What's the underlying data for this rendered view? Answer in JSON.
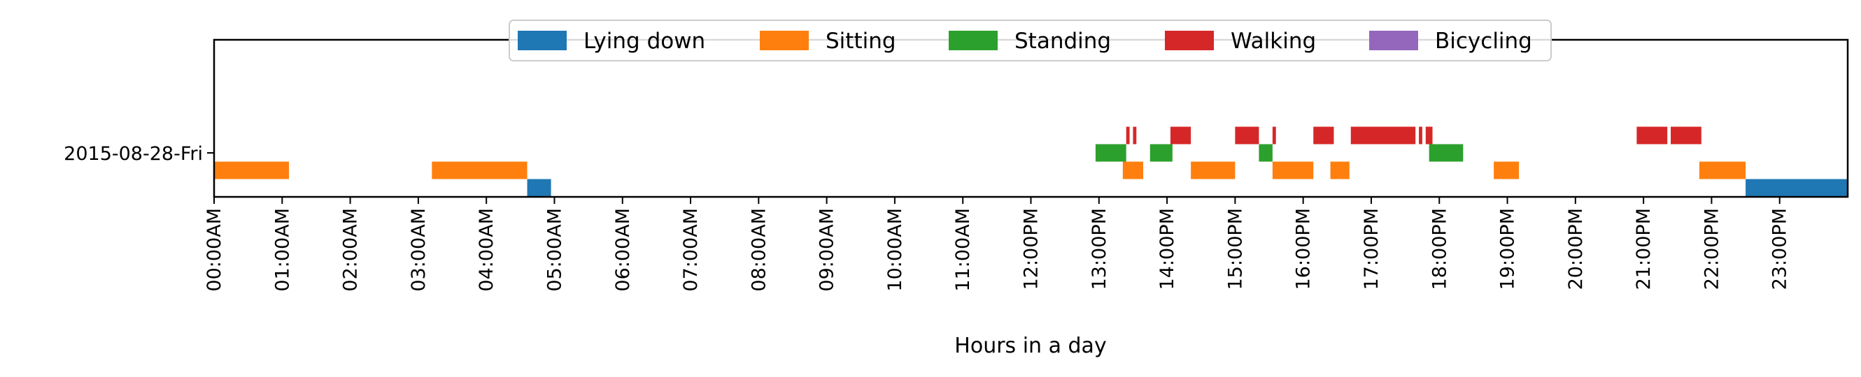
{
  "chart_data": {
    "type": "timeline",
    "xlabel": "Hours in a day",
    "xlim": [
      0,
      24
    ],
    "x_ticks": [
      {
        "value": 0,
        "label": "00:00AM"
      },
      {
        "value": 1,
        "label": "01:00AM"
      },
      {
        "value": 2,
        "label": "02:00AM"
      },
      {
        "value": 3,
        "label": "03:00AM"
      },
      {
        "value": 4,
        "label": "04:00AM"
      },
      {
        "value": 5,
        "label": "05:00AM"
      },
      {
        "value": 6,
        "label": "06:00AM"
      },
      {
        "value": 7,
        "label": "07:00AM"
      },
      {
        "value": 8,
        "label": "08:00AM"
      },
      {
        "value": 9,
        "label": "09:00AM"
      },
      {
        "value": 10,
        "label": "10:00AM"
      },
      {
        "value": 11,
        "label": "11:00AM"
      },
      {
        "value": 12,
        "label": "12:00PM"
      },
      {
        "value": 13,
        "label": "13:00PM"
      },
      {
        "value": 14,
        "label": "14:00PM"
      },
      {
        "value": 15,
        "label": "15:00PM"
      },
      {
        "value": 16,
        "label": "16:00PM"
      },
      {
        "value": 17,
        "label": "17:00PM"
      },
      {
        "value": 18,
        "label": "18:00PM"
      },
      {
        "value": 19,
        "label": "19:00PM"
      },
      {
        "value": 20,
        "label": "20:00PM"
      },
      {
        "value": 21,
        "label": "21:00PM"
      },
      {
        "value": 22,
        "label": "22:00PM"
      },
      {
        "value": 23,
        "label": "23:00PM"
      }
    ],
    "rows": [
      {
        "label": "2015-08-28-Fri"
      }
    ],
    "legend_position": "top-center",
    "grid": false,
    "series": [
      {
        "name": "Lying down",
        "color": "#1f77b4",
        "level": 2,
        "intervals": [
          [
            4.6,
            4.95
          ],
          [
            22.5,
            24.0
          ]
        ]
      },
      {
        "name": "Sitting",
        "color": "#ff7f0e",
        "level": 1,
        "intervals": [
          [
            0.0,
            1.1
          ],
          [
            3.2,
            4.6
          ],
          [
            13.35,
            13.65
          ],
          [
            14.35,
            15.0
          ],
          [
            15.55,
            16.15
          ],
          [
            16.4,
            16.68
          ],
          [
            18.8,
            19.17
          ],
          [
            21.82,
            22.5
          ]
        ]
      },
      {
        "name": "Standing",
        "color": "#2ca02c",
        "level": 0,
        "intervals": [
          [
            12.95,
            13.4
          ],
          [
            13.75,
            14.08
          ],
          [
            15.35,
            15.55
          ],
          [
            17.85,
            18.35
          ]
        ]
      },
      {
        "name": "Walking",
        "color": "#d62728",
        "level": -1,
        "intervals": [
          [
            13.4,
            13.45
          ],
          [
            13.5,
            13.55
          ],
          [
            14.05,
            14.35
          ],
          [
            15.0,
            15.35
          ],
          [
            15.55,
            15.6
          ],
          [
            16.15,
            16.45
          ],
          [
            16.7,
            17.65
          ],
          [
            17.7,
            17.75
          ],
          [
            17.8,
            17.9
          ],
          [
            20.9,
            21.35
          ],
          [
            21.4,
            21.85
          ]
        ]
      },
      {
        "name": "Bicycling",
        "color": "#9467bd",
        "level": -2,
        "intervals": []
      }
    ]
  }
}
